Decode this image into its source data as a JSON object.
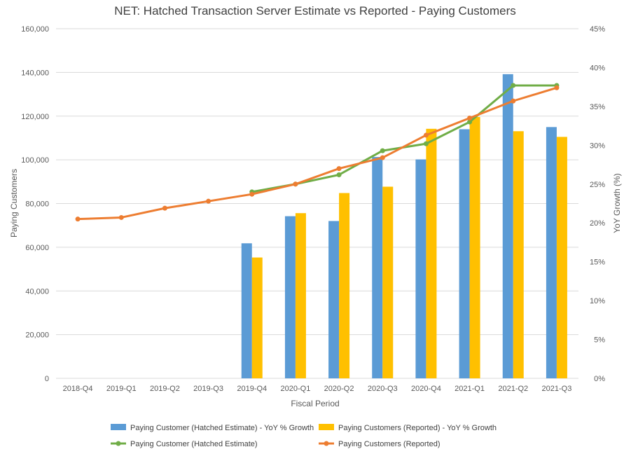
{
  "chart_data": {
    "type": "bar",
    "title": "NET: Hatched Transaction Server Estimate vs Reported - Paying Customers",
    "xlabel": "Fiscal Period",
    "ylabel": "Paying Customers",
    "y2label": "YoY Growth (%)",
    "ylim": [
      0,
      160000
    ],
    "y2lim": [
      0,
      45
    ],
    "yticks": [
      "0",
      "20,000",
      "40,000",
      "60,000",
      "80,000",
      "100,000",
      "120,000",
      "140,000",
      "160,000"
    ],
    "y2ticks": [
      "0%",
      "5%",
      "10%",
      "15%",
      "20%",
      "25%",
      "30%",
      "35%",
      "40%",
      "45%"
    ],
    "grid": true,
    "legend_position": "bottom",
    "categories": [
      "2018-Q4",
      "2019-Q1",
      "2019-Q2",
      "2019-Q3",
      "2019-Q4",
      "2020-Q1",
      "2020-Q2",
      "2020-Q3",
      "2020-Q4",
      "2021-Q1",
      "2021-Q2",
      "2021-Q3"
    ],
    "series": [
      {
        "name": "Paying Customer (Hatched Estimate) - YoY % Growth",
        "type": "bar",
        "axis": "left",
        "color": "#5B9BD5",
        "values": [
          null,
          null,
          null,
          null,
          61800,
          74200,
          72000,
          101300,
          100200,
          114000,
          139200,
          115000
        ]
      },
      {
        "name": "Paying Customers (Reported) - YoY % Growth",
        "type": "bar",
        "axis": "left",
        "color": "#FFC000",
        "values": [
          null,
          null,
          null,
          null,
          55300,
          75600,
          84800,
          87700,
          114200,
          119600,
          113100,
          110500
        ]
      },
      {
        "name": "Paying Customer (Hatched Estimate)",
        "type": "line",
        "axis": "right",
        "color": "#70AD47",
        "values": [
          null,
          null,
          null,
          null,
          24.0,
          25.0,
          26.2,
          29.3,
          30.2,
          33.0,
          37.7,
          37.7
        ]
      },
      {
        "name": "Paying Customers (Reported)",
        "type": "line",
        "axis": "right",
        "color": "#ED7D31",
        "values": [
          20.5,
          20.7,
          21.9,
          22.8,
          23.7,
          25.0,
          27.0,
          28.4,
          31.3,
          33.5,
          35.7,
          37.4
        ]
      }
    ]
  }
}
